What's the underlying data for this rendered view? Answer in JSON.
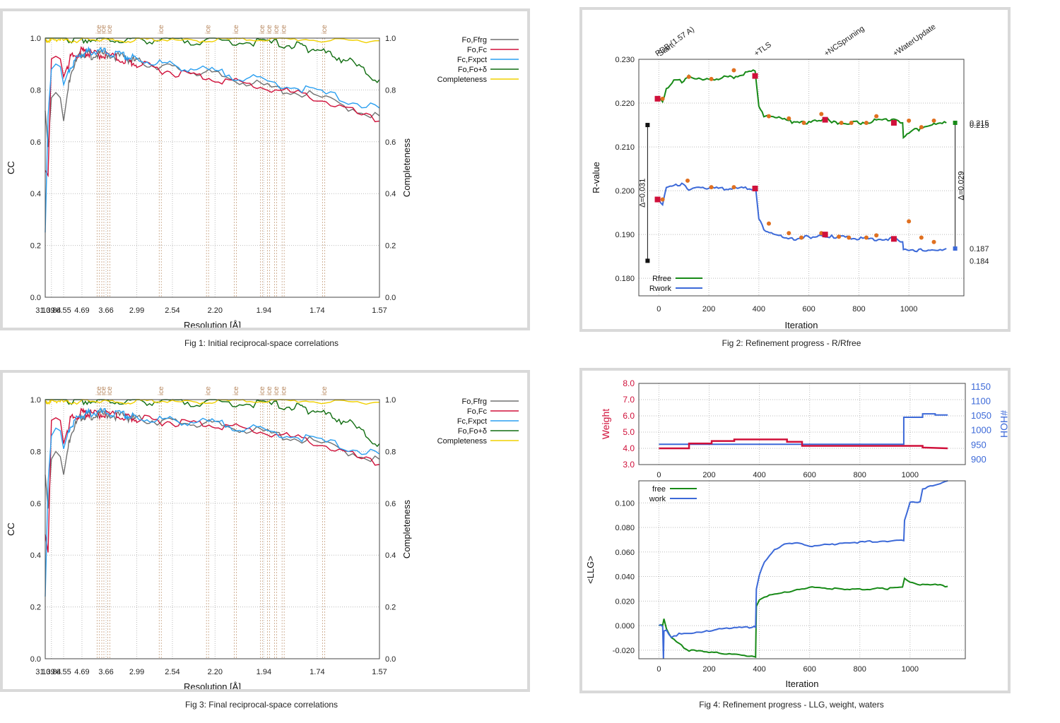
{
  "captions": {
    "fig1": "Fig 1:  Initial reciprocal-space correlations",
    "fig2": "Fig 2:  Refinement progress - R/Rfree",
    "fig3": "Fig 3:  Final reciprocal-space correlations",
    "fig4": "Fig 4:  Refinement progress - LLG, weight, waters"
  },
  "colors": {
    "fofrg": "#707070",
    "fofc": "#d0103a",
    "fcxpct": "#2a9ff0",
    "fodelta": "#106d10",
    "completeness": "#f0d000",
    "ice": "#b98a62",
    "rfree": "#178a17",
    "rwork": "#3c69d8",
    "weight": "#d0103a",
    "hoh": "#3c69d8"
  },
  "chart_data": [
    {
      "id": "fig1",
      "type": "line",
      "xlabel": "Resolution [Å]",
      "ylabel": "CC",
      "y2label": "Completeness",
      "x_ticks": [
        "31.39",
        "10.84",
        "6.55",
        "4.69",
        "3.66",
        "2.99",
        "2.54",
        "2.20",
        "1.94",
        "1.74",
        "1.57"
      ],
      "y_ticks": [
        "0.0",
        "0.2",
        "0.4",
        "0.6",
        "0.8",
        "1.0"
      ],
      "ylim": [
        0,
        1
      ],
      "ice_label": "ice",
      "ice_positions": [
        3.92,
        3.76,
        3.58,
        2.67,
        2.25,
        2.08,
        1.95,
        1.92,
        1.89,
        1.86,
        1.72
      ],
      "legend": [
        "Fo,Ffrg",
        "Fo,Fc",
        "Fc,Fxpct",
        "Fo,Fo+δ",
        "Completeness"
      ],
      "series": [
        {
          "name": "Fo,Ffrg",
          "x": [
            31.39,
            15.0,
            10.84,
            8.5,
            7.2,
            6.55,
            5.6,
            4.69,
            4.2,
            3.66,
            3.2,
            2.99,
            2.54,
            2.2,
            1.94,
            1.74,
            1.57
          ],
          "y": [
            0.72,
            0.58,
            0.77,
            0.79,
            0.77,
            0.68,
            0.88,
            0.95,
            0.94,
            0.945,
            0.93,
            0.915,
            0.89,
            0.865,
            0.82,
            0.78,
            0.7
          ]
        },
        {
          "name": "Fo,Fc",
          "x": [
            31.39,
            15.0,
            10.84,
            8.5,
            7.2,
            6.55,
            5.6,
            4.69,
            4.2,
            3.66,
            3.2,
            2.99,
            2.54,
            2.2,
            1.94,
            1.74,
            1.57
          ],
          "y": [
            0.49,
            0.47,
            0.92,
            0.93,
            0.92,
            0.85,
            0.93,
            0.955,
            0.945,
            0.94,
            0.92,
            0.905,
            0.875,
            0.85,
            0.815,
            0.775,
            0.68
          ]
        },
        {
          "name": "Fc,Fxpct",
          "x": [
            31.39,
            15.0,
            10.84,
            8.5,
            7.2,
            6.55,
            5.6,
            4.69,
            4.2,
            3.66,
            3.2,
            2.99,
            2.54,
            2.2,
            1.94,
            1.74,
            1.57
          ],
          "y": [
            0.25,
            0.7,
            0.88,
            0.9,
            0.89,
            0.82,
            0.9,
            0.945,
            0.955,
            0.95,
            0.935,
            0.925,
            0.9,
            0.875,
            0.84,
            0.8,
            0.73
          ]
        },
        {
          "name": "Fo,Fo+δ",
          "x": [
            31.39,
            10.84,
            6.55,
            4.69,
            3.66,
            2.99,
            2.54,
            2.2,
            1.94,
            1.8,
            1.74,
            1.65,
            1.57
          ],
          "y": [
            1.0,
            1.0,
            1.0,
            1.0,
            1.0,
            1.0,
            0.998,
            0.995,
            0.99,
            0.975,
            0.96,
            0.92,
            0.84
          ]
        },
        {
          "name": "Completeness",
          "x": [
            31.39,
            10.84,
            6.55,
            4.69,
            3.66,
            2.99,
            2.54,
            2.2,
            1.94,
            1.74,
            1.57
          ],
          "y": [
            0.99,
            0.995,
            0.99,
            0.995,
            0.99,
            0.995,
            0.99,
            0.995,
            0.995,
            0.99,
            0.99
          ]
        }
      ]
    },
    {
      "id": "fig2",
      "type": "line",
      "xlabel": "Iteration",
      "ylabel": "R-value",
      "x_ticks": [
        "0",
        "200",
        "400",
        "600",
        "800",
        "1000"
      ],
      "y_ticks": [
        "0.180",
        "0.190",
        "0.200",
        "0.210",
        "0.220",
        "0.230"
      ],
      "xlim": [
        -80,
        1220
      ],
      "ylim": [
        0.176,
        0.23
      ],
      "stage_labels": [
        {
          "label": "PDB (1.57 A)",
          "x": -5
        },
        {
          "label": "Start",
          "x": 5
        },
        {
          "label": "+TLS",
          "x": 390
        },
        {
          "label": "+NCSpruning",
          "x": 670
        },
        {
          "label": "+WaterUpdate",
          "x": 945
        }
      ],
      "delta_left": "Δ=0.031",
      "delta_right": "Δ=0.029",
      "right_values": [
        "0.215",
        "0.215",
        "0.187",
        "0.184"
      ],
      "legend": [
        "Rfree",
        "Rwork"
      ],
      "series": [
        {
          "name": "Rfree",
          "x": [
            0,
            15,
            30,
            60,
            100,
            120,
            200,
            300,
            385,
            388,
            400,
            420,
            480,
            540,
            600,
            665,
            700,
            800,
            940,
            975,
            978,
            1000,
            1040,
            1100,
            1150
          ],
          "y": [
            0.221,
            0.22,
            0.223,
            0.225,
            0.225,
            0.226,
            0.2255,
            0.226,
            0.2275,
            0.226,
            0.2195,
            0.217,
            0.2165,
            0.2155,
            0.2155,
            0.2165,
            0.2155,
            0.2155,
            0.2165,
            0.2155,
            0.2125,
            0.2135,
            0.214,
            0.215,
            0.2155
          ]
        },
        {
          "name": "Rwork",
          "x": [
            0,
            15,
            30,
            60,
            100,
            120,
            200,
            300,
            385,
            388,
            400,
            420,
            480,
            540,
            600,
            665,
            700,
            800,
            940,
            975,
            978,
            1000,
            1040,
            1100,
            1150
          ],
          "y": [
            0.198,
            0.197,
            0.201,
            0.2015,
            0.2015,
            0.2005,
            0.2005,
            0.2005,
            0.2005,
            0.2,
            0.1935,
            0.191,
            0.19,
            0.189,
            0.1895,
            0.1895,
            0.1895,
            0.189,
            0.189,
            0.188,
            0.1865,
            0.186,
            0.1865,
            0.1865,
            0.1868
          ]
        }
      ],
      "markers_rfree": [
        [
          15,
          0.221
        ],
        [
          120,
          0.226
        ],
        [
          210,
          0.2255
        ],
        [
          300,
          0.2275
        ],
        [
          440,
          0.217
        ],
        [
          520,
          0.2165
        ],
        [
          580,
          0.2155
        ],
        [
          650,
          0.2175
        ],
        [
          730,
          0.2155
        ],
        [
          770,
          0.2155
        ],
        [
          830,
          0.2155
        ],
        [
          870,
          0.217
        ],
        [
          1000,
          0.216
        ],
        [
          1050,
          0.2145
        ],
        [
          1100,
          0.216
        ]
      ],
      "markers_rwork": [
        [
          15,
          0.198
        ],
        [
          115,
          0.2023
        ],
        [
          210,
          0.2008
        ],
        [
          300,
          0.2008
        ],
        [
          440,
          0.1925
        ],
        [
          520,
          0.1903
        ],
        [
          570,
          0.1893
        ],
        [
          650,
          0.1903
        ],
        [
          720,
          0.1895
        ],
        [
          760,
          0.1893
        ],
        [
          830,
          0.1893
        ],
        [
          870,
          0.1898
        ],
        [
          1000,
          0.193
        ],
        [
          1050,
          0.1893
        ],
        [
          1100,
          0.1883
        ]
      ],
      "squares_red": [
        [
          -5,
          0.221
        ],
        [
          -5,
          0.198
        ],
        [
          385,
          0.2262
        ],
        [
          385,
          0.2005
        ],
        [
          665,
          0.2162
        ],
        [
          665,
          0.19
        ],
        [
          940,
          0.2155
        ],
        [
          940,
          0.189
        ]
      ],
      "end_points": {
        "rfree": [
          1185,
          0.2155
        ],
        "rwork": [
          1185,
          0.1868
        ],
        "left_top": [
          -45,
          0.215
        ],
        "left_bottom": [
          -45,
          0.184
        ]
      }
    },
    {
      "id": "fig3",
      "type": "line",
      "xlabel": "Resolution [Å]",
      "ylabel": "CC",
      "y2label": "Completeness",
      "x_ticks": [
        "31.39",
        "10.84",
        "6.55",
        "4.69",
        "3.66",
        "2.99",
        "2.54",
        "2.20",
        "1.94",
        "1.74",
        "1.57"
      ],
      "y_ticks": [
        "0.0",
        "0.2",
        "0.4",
        "0.6",
        "0.8",
        "1.0"
      ],
      "ylim": [
        0,
        1
      ],
      "ice_label": "ice",
      "ice_positions": [
        3.92,
        3.76,
        3.58,
        2.67,
        2.25,
        2.08,
        1.95,
        1.92,
        1.89,
        1.86,
        1.72
      ],
      "legend": [
        "Fo,Ffrg",
        "Fo,Fc",
        "Fc,Fxpct",
        "Fo,Fo+δ",
        "Completeness"
      ],
      "series": [
        {
          "name": "Fo,Ffrg",
          "x": [
            31.39,
            15.0,
            10.84,
            8.5,
            7.2,
            6.55,
            5.6,
            4.69,
            4.2,
            3.66,
            3.2,
            2.99,
            2.54,
            2.2,
            1.94,
            1.74,
            1.57
          ],
          "y": [
            0.71,
            0.58,
            0.77,
            0.8,
            0.78,
            0.71,
            0.88,
            0.945,
            0.945,
            0.95,
            0.94,
            0.93,
            0.92,
            0.91,
            0.88,
            0.84,
            0.77
          ]
        },
        {
          "name": "Fo,Fc",
          "x": [
            31.39,
            15.0,
            10.84,
            8.5,
            7.2,
            6.55,
            5.6,
            4.69,
            4.2,
            3.66,
            3.2,
            2.99,
            2.54,
            2.2,
            1.94,
            1.74,
            1.57
          ],
          "y": [
            0.48,
            0.41,
            0.92,
            0.93,
            0.92,
            0.83,
            0.93,
            0.955,
            0.95,
            0.95,
            0.94,
            0.93,
            0.92,
            0.91,
            0.88,
            0.84,
            0.75
          ]
        },
        {
          "name": "Fc,Fxpct",
          "x": [
            31.39,
            15.0,
            10.84,
            8.5,
            7.2,
            6.55,
            5.6,
            4.69,
            4.2,
            3.66,
            3.2,
            2.99,
            2.54,
            2.2,
            1.94,
            1.74,
            1.57
          ],
          "y": [
            0.24,
            0.68,
            0.86,
            0.89,
            0.88,
            0.81,
            0.91,
            0.945,
            0.955,
            0.955,
            0.945,
            0.935,
            0.925,
            0.915,
            0.885,
            0.85,
            0.79
          ]
        },
        {
          "name": "Fo,Fo+δ",
          "x": [
            31.39,
            10.84,
            6.55,
            4.69,
            3.66,
            2.99,
            2.54,
            2.2,
            1.94,
            1.8,
            1.74,
            1.65,
            1.57
          ],
          "y": [
            1.0,
            1.0,
            1.0,
            1.0,
            1.0,
            1.0,
            0.998,
            0.995,
            0.99,
            0.975,
            0.96,
            0.92,
            0.83
          ]
        },
        {
          "name": "Completeness",
          "x": [
            31.39,
            10.84,
            6.55,
            4.69,
            3.66,
            2.99,
            2.54,
            2.2,
            1.94,
            1.74,
            1.57
          ],
          "y": [
            0.99,
            0.995,
            0.99,
            0.995,
            0.99,
            0.995,
            0.99,
            0.995,
            0.995,
            0.99,
            0.99
          ]
        }
      ]
    },
    {
      "id": "fig4-top",
      "type": "line",
      "ylabel": "Weight",
      "y2label": "#HOH",
      "x_ticks": [
        "0",
        "200",
        "400",
        "600",
        "800",
        "1000"
      ],
      "y_ticks": [
        "3.0",
        "4.0",
        "5.0",
        "6.0",
        "7.0",
        "8.0"
      ],
      "y2_ticks": [
        "900",
        "950",
        "1000",
        "1050",
        "1100",
        "1150"
      ],
      "xlim": [
        -80,
        1220
      ],
      "ylim": [
        3.0,
        8.0
      ],
      "y2lim": [
        880,
        1160
      ],
      "series": [
        {
          "name": "Weight",
          "x": [
            0,
            120,
            120,
            210,
            210,
            300,
            300,
            510,
            510,
            570,
            570,
            1050,
            1050,
            1150
          ],
          "y": [
            4.0,
            4.0,
            4.3,
            4.3,
            4.45,
            4.45,
            4.55,
            4.55,
            4.4,
            4.4,
            4.15,
            4.15,
            4.05,
            4.0
          ]
        },
        {
          "name": "#HOH",
          "x": [
            0,
            975,
            975,
            1050,
            1050,
            1100,
            1100,
            1150
          ],
          "y": [
            950,
            950,
            1043,
            1043,
            1055,
            1055,
            1051,
            1051
          ]
        }
      ]
    },
    {
      "id": "fig4-bottom",
      "type": "line",
      "xlabel": "Iteration",
      "ylabel": "<LLG>",
      "x_ticks": [
        "0",
        "200",
        "400",
        "600",
        "800",
        "1000"
      ],
      "y_ticks": [
        "-0.020",
        "0.000",
        "0.020",
        "0.040",
        "0.060",
        "0.080",
        "0.100"
      ],
      "xlim": [
        -80,
        1220
      ],
      "ylim": [
        -0.027,
        0.118
      ],
      "legend": [
        "free",
        "work"
      ],
      "series": [
        {
          "name": "free",
          "x": [
            0,
            15,
            20,
            30,
            50,
            80,
            100,
            120,
            200,
            300,
            380,
            385,
            388,
            400,
            420,
            460,
            500,
            560,
            600,
            700,
            800,
            900,
            970,
            978,
            1000,
            1050,
            1100,
            1150
          ],
          "y": [
            0.0,
            0.0,
            0.006,
            -0.002,
            -0.01,
            -0.015,
            -0.018,
            -0.02,
            -0.022,
            -0.023,
            -0.025,
            -0.026,
            0.015,
            0.021,
            0.024,
            0.025,
            0.027,
            0.03,
            0.031,
            0.03,
            0.03,
            0.03,
            0.031,
            0.038,
            0.036,
            0.033,
            0.033,
            0.032
          ]
        },
        {
          "name": "work",
          "x": [
            0,
            15,
            18,
            20,
            30,
            50,
            80,
            100,
            120,
            200,
            300,
            380,
            385,
            388,
            400,
            420,
            460,
            500,
            560,
            600,
            700,
            800,
            900,
            975,
            978,
            1000,
            1040,
            1050,
            1100,
            1150
          ],
          "y": [
            0.0,
            0.0,
            -0.027,
            -0.005,
            -0.004,
            -0.009,
            -0.007,
            -0.007,
            -0.006,
            -0.004,
            -0.002,
            -0.001,
            -0.001,
            0.03,
            0.041,
            0.052,
            0.062,
            0.066,
            0.067,
            0.065,
            0.066,
            0.068,
            0.069,
            0.07,
            0.085,
            0.1,
            0.101,
            0.112,
            0.114,
            0.118
          ]
        }
      ]
    }
  ]
}
